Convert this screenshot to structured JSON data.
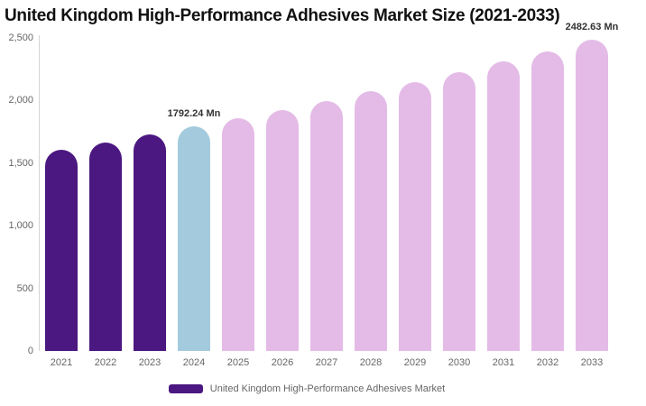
{
  "title": "United Kingdom High-Performance Adhesives Market Size (2021-2033)",
  "legend": {
    "label": "United Kingdom High-Performance Adhesives Market",
    "swatch_color": "#4B1780"
  },
  "colors": {
    "historical_bar": "#4B1780",
    "highlight_bar": "#A3CBDD",
    "forecast_bar": "#E4BBE7",
    "axis_line": "#d4d4d4",
    "axis_text": "#666666",
    "data_label_text": "#333333"
  },
  "chart_data": {
    "type": "bar",
    "title": "United Kingdom High-Performance Adhesives Market Size (2021-2033)",
    "categories": [
      "2021",
      "2022",
      "2023",
      "2024",
      "2025",
      "2026",
      "2027",
      "2028",
      "2029",
      "2030",
      "2031",
      "2032",
      "2033"
    ],
    "series": [
      {
        "name": "United Kingdom High-Performance Adhesives Market",
        "values": [
          1607.7,
          1667.0,
          1728.5,
          1792.24,
          1858.4,
          1927.0,
          1998.1,
          2071.9,
          2148.4,
          2227.7,
          2309.9,
          2395.2,
          2482.63
        ]
      }
    ],
    "unit": "Mn",
    "bar_roles": [
      "historical",
      "historical",
      "historical",
      "highlight",
      "forecast",
      "forecast",
      "forecast",
      "forecast",
      "forecast",
      "forecast",
      "forecast",
      "forecast",
      "forecast"
    ],
    "data_labels": [
      {
        "category": "2024",
        "text": "1792.24 Mn"
      },
      {
        "category": "2033",
        "text": "2482.63 Mn"
      }
    ],
    "xlabel": "",
    "ylabel": "",
    "ylim": [
      0,
      2500
    ],
    "y_ticks": [
      0,
      500,
      1000,
      1500,
      2000,
      2500
    ],
    "y_tick_labels": [
      "0",
      "500",
      "1,000",
      "1,500",
      "2,000",
      "2,500"
    ],
    "grid": false,
    "legend_position": "bottom"
  }
}
